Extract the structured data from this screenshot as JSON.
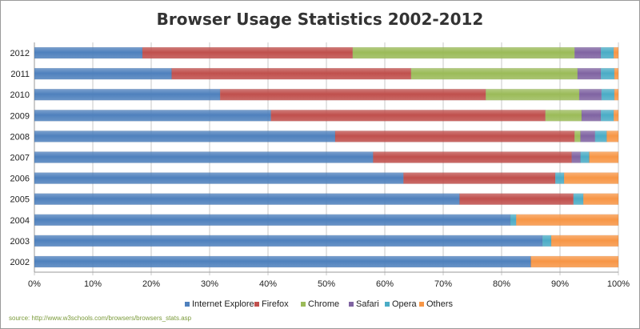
{
  "chart_data": {
    "type": "bar",
    "orientation": "horizontal",
    "stacked": "percent",
    "title": "Browser Usage Statistics 2002-2012",
    "xlabel": "",
    "ylabel": "",
    "xlim": [
      0,
      100
    ],
    "x_tick_labels": [
      "0%",
      "10%",
      "20%",
      "30%",
      "40%",
      "50%",
      "60%",
      "70%",
      "80%",
      "90%",
      "100%"
    ],
    "grid": true,
    "legend_position": "bottom",
    "categories": [
      "2012",
      "2011",
      "2010",
      "2009",
      "2008",
      "2007",
      "2006",
      "2005",
      "2004",
      "2003",
      "2002"
    ],
    "series": [
      {
        "name": "Internet Explorer",
        "color": "#4f81bd",
        "values": [
          18.5,
          23.5,
          31.8,
          40.5,
          51.5,
          58.0,
          63.2,
          72.8,
          81.5,
          87.0,
          85.0
        ]
      },
      {
        "name": "Firefox",
        "color": "#c0504d",
        "values": [
          36.0,
          41.0,
          45.5,
          47.0,
          41.0,
          34.0,
          26.0,
          19.5,
          0,
          0,
          0
        ]
      },
      {
        "name": "Chrome",
        "color": "#9bbb59",
        "values": [
          38.0,
          28.5,
          16.0,
          6.2,
          1.0,
          0,
          0,
          0,
          0,
          0,
          0
        ]
      },
      {
        "name": "Safari",
        "color": "#8064a2",
        "values": [
          4.5,
          4.0,
          3.8,
          3.3,
          2.5,
          1.5,
          0,
          0,
          0,
          0,
          0
        ]
      },
      {
        "name": "Opera",
        "color": "#4bacc6",
        "values": [
          2.2,
          2.3,
          2.2,
          2.2,
          2.0,
          1.5,
          1.5,
          1.7,
          1.0,
          1.5,
          0
        ]
      },
      {
        "name": "Others",
        "color": "#f79646",
        "values": [
          0.8,
          0.7,
          0.7,
          0.8,
          2.0,
          5.0,
          9.3,
          6.0,
          17.5,
          11.5,
          15.0
        ]
      }
    ],
    "source": "source: http://www.w3schools.com/browsers/browsers_stats.asp"
  }
}
